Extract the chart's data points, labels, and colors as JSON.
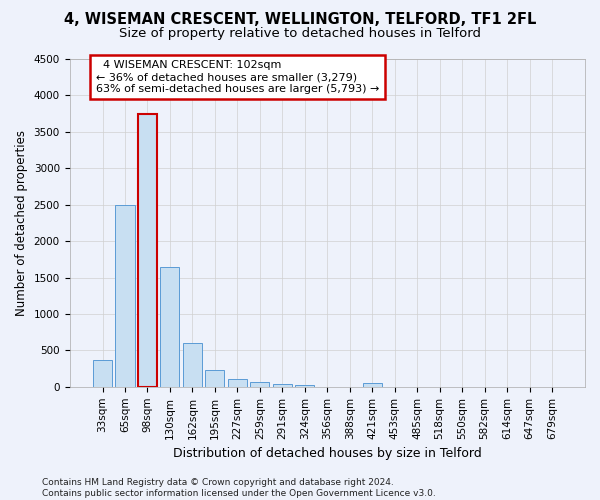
{
  "title": "4, WISEMAN CRESCENT, WELLINGTON, TELFORD, TF1 2FL",
  "subtitle": "Size of property relative to detached houses in Telford",
  "xlabel": "Distribution of detached houses by size in Telford",
  "ylabel": "Number of detached properties",
  "categories": [
    "33sqm",
    "65sqm",
    "98sqm",
    "130sqm",
    "162sqm",
    "195sqm",
    "227sqm",
    "259sqm",
    "291sqm",
    "324sqm",
    "356sqm",
    "388sqm",
    "421sqm",
    "453sqm",
    "485sqm",
    "518sqm",
    "550sqm",
    "582sqm",
    "614sqm",
    "647sqm",
    "679sqm"
  ],
  "values": [
    370,
    2500,
    3750,
    1650,
    600,
    230,
    110,
    70,
    45,
    30,
    0,
    0,
    50,
    0,
    0,
    0,
    0,
    0,
    0,
    0,
    0
  ],
  "highlight_index": 2,
  "bar_color": "#c8dff2",
  "bar_edge_color": "#5b9bd5",
  "highlight_edge_color": "#cc0000",
  "annotation_text": "  4 WISEMAN CRESCENT: 102sqm\n← 36% of detached houses are smaller (3,279)\n63% of semi-detached houses are larger (5,793) →",
  "annotation_box_facecolor": "#ffffff",
  "annotation_box_edgecolor": "#cc0000",
  "ylim": [
    0,
    4500
  ],
  "yticks": [
    0,
    500,
    1000,
    1500,
    2000,
    2500,
    3000,
    3500,
    4000,
    4500
  ],
  "footer": "Contains HM Land Registry data © Crown copyright and database right 2024.\nContains public sector information licensed under the Open Government Licence v3.0.",
  "bg_color": "#eef2fb",
  "plot_bg_color": "#eef2fb",
  "grid_color": "#d0d0d0",
  "title_fontsize": 10.5,
  "subtitle_fontsize": 9.5,
  "ylabel_fontsize": 8.5,
  "xlabel_fontsize": 9,
  "tick_fontsize": 7.5,
  "annotation_fontsize": 8,
  "footer_fontsize": 6.5
}
